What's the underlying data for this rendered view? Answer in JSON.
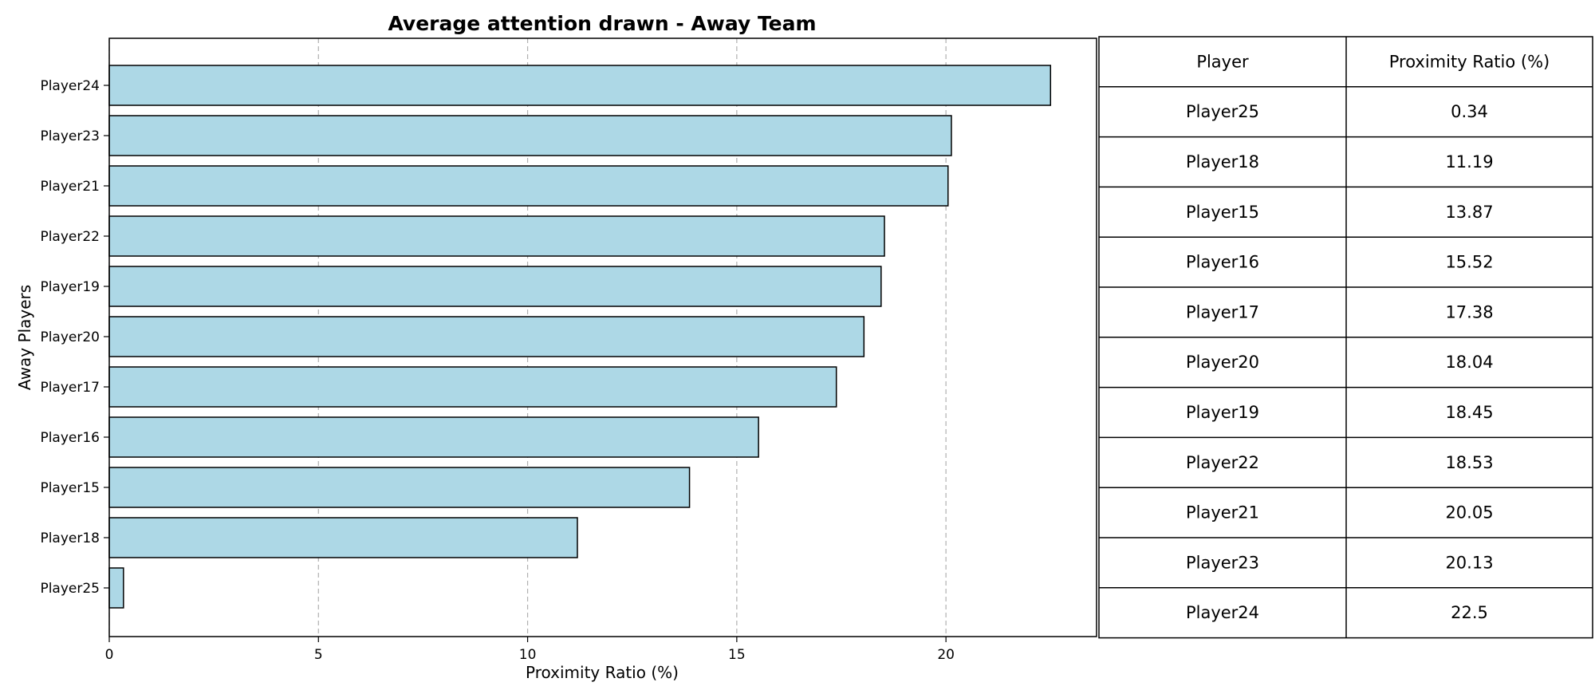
{
  "chart_data": {
    "type": "bar",
    "orientation": "horizontal",
    "title": "Average attention drawn - Away Team",
    "xlabel": "Proximity Ratio (%)",
    "ylabel": "Away Players",
    "categories": [
      "Player24",
      "Player23",
      "Player21",
      "Player22",
      "Player19",
      "Player20",
      "Player17",
      "Player16",
      "Player15",
      "Player18",
      "Player25"
    ],
    "values": [
      22.5,
      20.13,
      20.05,
      18.53,
      18.45,
      18.04,
      17.38,
      15.52,
      13.87,
      11.19,
      0.34
    ],
    "xlim": [
      0,
      23.6
    ],
    "xticks": [
      0,
      5,
      10,
      15,
      20
    ],
    "grid": "x-dashed",
    "bar_color": "#add8e6",
    "edge_color": "#000000"
  },
  "table": {
    "headers": [
      "Player",
      "Proximity Ratio (%)"
    ],
    "rows": [
      [
        "Player25",
        "0.34"
      ],
      [
        "Player18",
        "11.19"
      ],
      [
        "Player15",
        "13.87"
      ],
      [
        "Player16",
        "15.52"
      ],
      [
        "Player17",
        "17.38"
      ],
      [
        "Player20",
        "18.04"
      ],
      [
        "Player19",
        "18.45"
      ],
      [
        "Player22",
        "18.53"
      ],
      [
        "Player21",
        "20.05"
      ],
      [
        "Player23",
        "20.13"
      ],
      [
        "Player24",
        "22.5"
      ]
    ]
  }
}
